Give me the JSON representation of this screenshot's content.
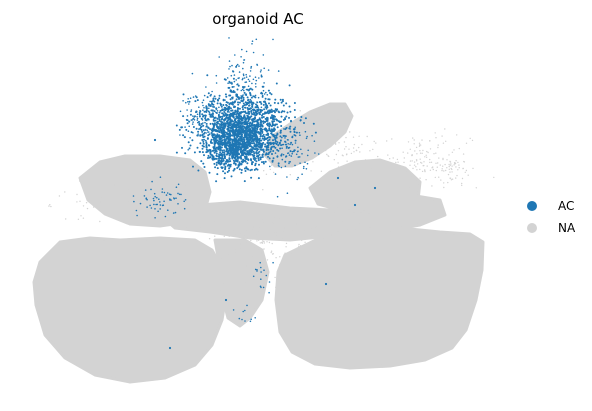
{
  "chart_data": {
    "type": "scatter",
    "title": "organoid AC",
    "xlabel": "",
    "ylabel": "",
    "grid": false,
    "axes_visible": false,
    "legend_placement": "right",
    "categories": [
      "AC",
      "NA"
    ],
    "series": [
      {
        "name": "AC",
        "color": "#1f77b4",
        "point_count_estimate": 7000,
        "notes": "dense cluster at top-center of embedding with sparse outliers"
      },
      {
        "name": "NA",
        "color": "#d3d3d3",
        "point_count_estimate": 150000,
        "notes": "background cells covering full embedding"
      }
    ]
  }
}
